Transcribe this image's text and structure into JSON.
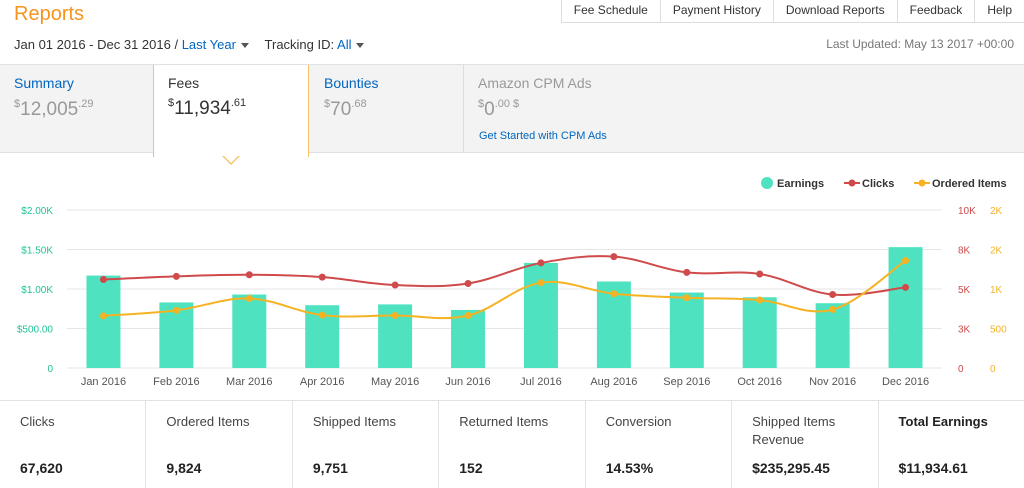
{
  "header": {
    "title": "Reports",
    "nav": [
      "Fee Schedule",
      "Payment History",
      "Download Reports",
      "Feedback",
      "Help"
    ]
  },
  "filters": {
    "date_range": "Jan 01 2016 - Dec 31 2016 /",
    "period": "Last Year",
    "tracking_label": "Tracking ID:",
    "tracking_value": "All",
    "last_updated": "Last Updated: May 13 2017 +00:00"
  },
  "tabs": [
    {
      "label": "Summary",
      "currency": "$",
      "whole": "12,005",
      "cents": ".29",
      "active": false
    },
    {
      "label": "Fees",
      "currency": "$",
      "whole": "11,934",
      "cents": ".61",
      "active": true
    },
    {
      "label": "Bounties",
      "currency": "$",
      "whole": "70",
      "cents": ".68",
      "active": false
    },
    {
      "label": "Amazon CPM Ads",
      "currency": "$",
      "whole": "0",
      "cents": ".00 $",
      "active": false,
      "link": "Get Started with CPM Ads"
    }
  ],
  "colors": {
    "earnings": "#4fe2c0",
    "clicks": "#cf4a4a",
    "ordered": "#f5b324",
    "grid": "#e6e6e6",
    "axis_left": "#20c497"
  },
  "chart_data": {
    "type": "bar",
    "categories": [
      "Jan 2016",
      "Feb 2016",
      "Mar 2016",
      "Apr 2016",
      "May 2016",
      "Jun 2016",
      "Jul 2016",
      "Aug 2016",
      "Sep 2016",
      "Oct 2016",
      "Nov 2016",
      "Dec 2016"
    ],
    "series": [
      {
        "name": "Earnings",
        "type": "bar",
        "axis": "earnings",
        "values": [
          1170,
          830,
          930,
          795,
          805,
          735,
          1330,
          1095,
          955,
          895,
          820,
          1530
        ]
      },
      {
        "name": "Clicks",
        "type": "line",
        "axis": "clicks",
        "values": [
          5600,
          5800,
          5900,
          5750,
          5250,
          5350,
          6650,
          7050,
          6050,
          5950,
          4650,
          5100
        ]
      },
      {
        "name": "Ordered Items",
        "type": "line",
        "axis": "ordered",
        "values": [
          660,
          730,
          880,
          670,
          665,
          665,
          1080,
          940,
          890,
          860,
          740,
          1360
        ]
      }
    ],
    "axes": {
      "earnings": {
        "min": 0,
        "max": 2000,
        "ticks": [
          "0",
          "$500.00",
          "$1.00K",
          "$1.50K",
          "$2.00K"
        ]
      },
      "clicks": {
        "min": 0,
        "max": 10000,
        "ticks": [
          "0",
          "3K",
          "5K",
          "8K",
          "10K"
        ]
      },
      "ordered": {
        "min": 0,
        "max": 2000,
        "ticks": [
          "0",
          "500",
          "1K",
          "2K",
          "2K"
        ]
      }
    },
    "grid": true,
    "legend_position": "top-right"
  },
  "stats": [
    {
      "label": "Clicks",
      "value": "67,620"
    },
    {
      "label": "Ordered Items",
      "value": "9,824"
    },
    {
      "label": "Shipped Items",
      "value": "9,751"
    },
    {
      "label": "Returned Items",
      "value": "152"
    },
    {
      "label": "Conversion",
      "value": "14.53%"
    },
    {
      "label": "Shipped Items Revenue",
      "value": "$235,295.45"
    },
    {
      "label": "Total Earnings",
      "value": "$11,934.61"
    }
  ]
}
